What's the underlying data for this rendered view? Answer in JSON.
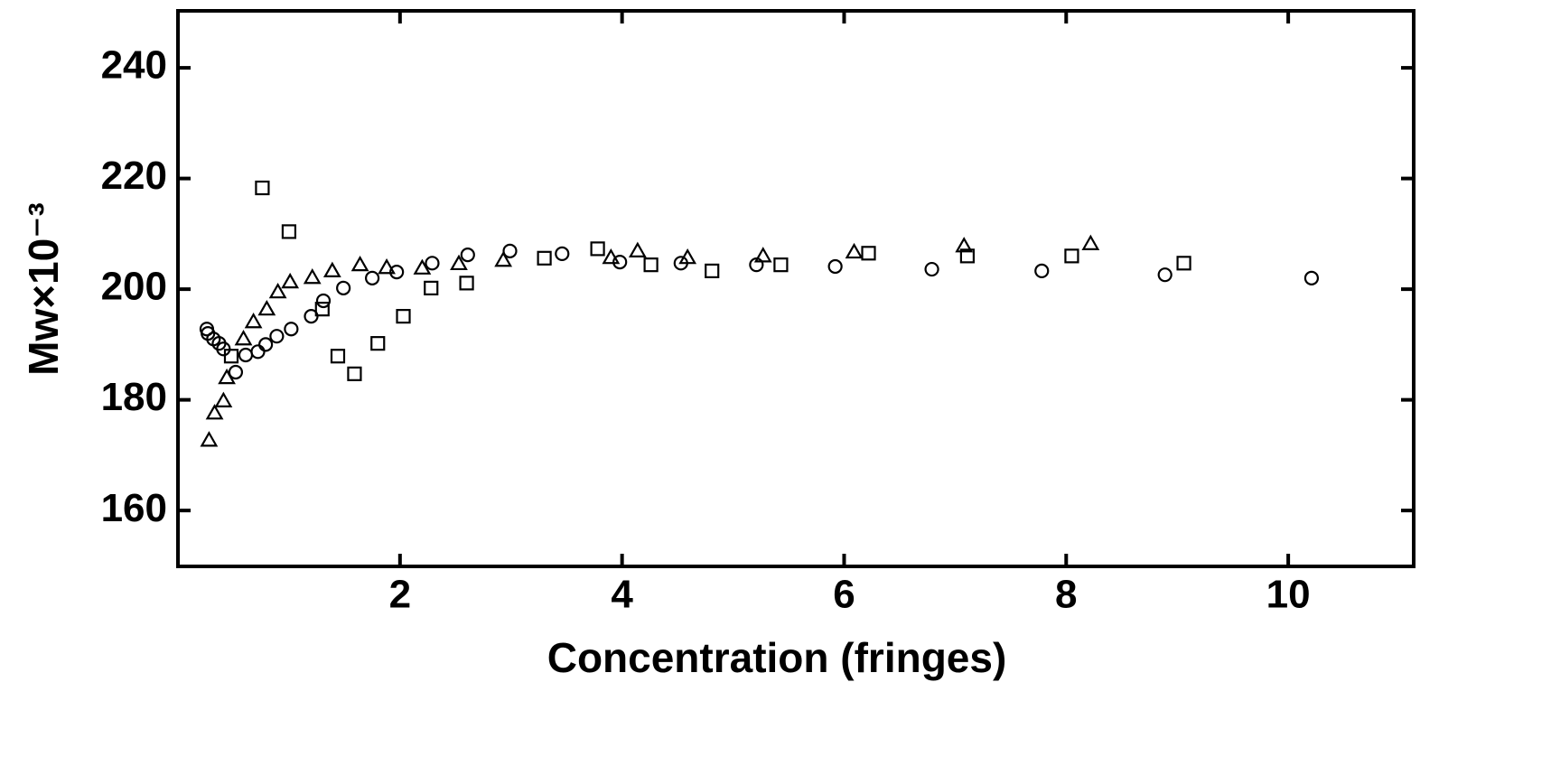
{
  "chart_data": {
    "type": "scatter",
    "xlabel": "Concentration (fringes)",
    "ylabel": "Mw×10⁻³",
    "xlim": [
      0,
      11.13
    ],
    "ylim": [
      149.9,
      250.3
    ],
    "xticks": [
      2,
      4,
      6,
      8,
      10
    ],
    "yticks": [
      160,
      180,
      200,
      220,
      240
    ],
    "grid": false,
    "series": [
      {
        "marker": "circle",
        "color": "#000000",
        "x": [
          0.26,
          0.27,
          0.32,
          0.37,
          0.41,
          0.52,
          0.61,
          0.72,
          0.79,
          0.89,
          1.02,
          1.2,
          1.31,
          1.49,
          1.75,
          1.97,
          2.29,
          2.61,
          2.99,
          3.46,
          3.98,
          4.53,
          5.21,
          5.92,
          6.79,
          7.78,
          8.89,
          10.21
        ],
        "values": [
          192.8,
          192.0,
          191.0,
          190.2,
          189.2,
          185.0,
          188.1,
          188.7,
          190.0,
          191.5,
          192.8,
          195.1,
          197.9,
          200.2,
          202.0,
          203.1,
          204.7,
          206.2,
          206.9,
          206.4,
          204.9,
          204.7,
          204.4,
          204.1,
          203.6,
          203.3,
          202.6,
          202.0
        ]
      },
      {
        "marker": "triangle",
        "color": "#000000",
        "x": [
          0.28,
          0.33,
          0.41,
          0.44,
          0.59,
          0.68,
          0.8,
          0.9,
          1.01,
          1.21,
          1.39,
          1.64,
          1.88,
          2.2,
          2.53,
          2.93,
          3.9,
          4.14,
          4.59,
          5.27,
          6.09,
          7.08,
          8.22
        ],
        "values": [
          172.7,
          177.6,
          179.8,
          184.0,
          191.0,
          194.1,
          196.4,
          199.5,
          201.3,
          202.1,
          203.3,
          204.4,
          203.9,
          203.8,
          204.6,
          205.2,
          205.7,
          206.9,
          205.7,
          206.0,
          206.7,
          207.8,
          208.2
        ]
      },
      {
        "marker": "square",
        "color": "#000000",
        "x": [
          0.48,
          0.76,
          1.0,
          1.3,
          1.44,
          1.59,
          1.8,
          2.03,
          2.28,
          2.6,
          3.3,
          3.78,
          4.26,
          4.81,
          5.43,
          6.22,
          7.11,
          8.05,
          9.06
        ],
        "values": [
          187.9,
          218.3,
          210.4,
          196.4,
          187.9,
          184.7,
          190.2,
          195.1,
          200.2,
          201.1,
          205.6,
          207.3,
          204.4,
          203.3,
          204.4,
          206.5,
          206.0,
          206.0,
          204.7
        ]
      }
    ]
  }
}
